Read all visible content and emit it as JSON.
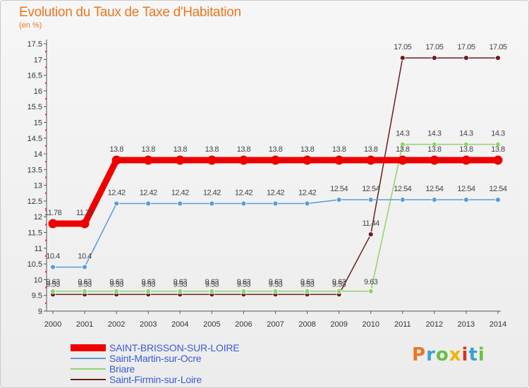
{
  "title": "Evolution du Taux de Taxe d'Habitation",
  "unit": "(en %)",
  "logo": "Proxiti",
  "colors": {
    "title": "#e87722",
    "axis": "#555555",
    "legend_text": "#3b5bd6",
    "logo": [
      "#e87722",
      "#3aa0d8",
      "#6cbd45",
      "#f2b400",
      "#d9341e",
      "#3aa0d8",
      "#6cbd45"
    ]
  },
  "chart_data": {
    "type": "line",
    "title": "Evolution du Taux de Taxe d'Habitation",
    "ylabel": "(en %)",
    "xlabel": "",
    "x": [
      "2000",
      "2001",
      "2002",
      "2003",
      "2004",
      "2005",
      "2006",
      "2007",
      "2008",
      "2009",
      "2010",
      "2011",
      "2012",
      "2013",
      "2014"
    ],
    "ylim": [
      9,
      17.5
    ],
    "yticks": [
      "9",
      "9.5",
      "10",
      "10.5",
      "11",
      "11.5",
      "12",
      "12.5",
      "13",
      "13.5",
      "14",
      "14.5",
      "15",
      "15.5",
      "16",
      "16.5",
      "17",
      "17.5"
    ],
    "legend_position": "bottom-left",
    "grid": false,
    "series": [
      {
        "name": "SAINT-BRISSON-SUR-LOIRE",
        "color": "#ee0000",
        "values": [
          11.78,
          11.78,
          13.8,
          13.8,
          13.8,
          13.8,
          13.8,
          13.8,
          13.8,
          13.8,
          13.8,
          13.8,
          13.8,
          13.8,
          13.8
        ],
        "labels": [
          "11.78",
          "11.78",
          "13.8",
          "13.8",
          "13.8",
          "13.8",
          "13.8",
          "13.8",
          "13.8",
          "13.8",
          "13.8",
          "13.8",
          "13.8",
          "13.8",
          "13.8"
        ]
      },
      {
        "name": "Saint-Martin-sur-Ocre",
        "color": "#5b9bd5",
        "values": [
          10.4,
          10.4,
          12.42,
          12.42,
          12.42,
          12.42,
          12.42,
          12.42,
          12.42,
          12.54,
          12.54,
          12.54,
          12.54,
          12.54,
          12.54
        ],
        "labels": [
          "10.4",
          "10.4",
          "12.42",
          "12.42",
          "12.42",
          "12.42",
          "12.42",
          "12.42",
          "12.42",
          "12.54",
          "12.54",
          "12.54",
          "12.54",
          "12.54",
          "12.54"
        ]
      },
      {
        "name": "Briare",
        "color": "#8fd46b",
        "values": [
          9.63,
          9.63,
          9.63,
          9.63,
          9.63,
          9.63,
          9.63,
          9.63,
          9.63,
          9.63,
          9.63,
          14.3,
          14.3,
          14.3,
          14.3
        ],
        "labels": [
          "9.63",
          "9.63",
          "9.63",
          "9.63",
          "9.63",
          "9.63",
          "9.63",
          "9.63",
          "9.63",
          "9.63",
          "9.63",
          "14.3",
          "14.3",
          "14.3",
          "14.3"
        ]
      },
      {
        "name": "Saint-Firmin-sur-Loire",
        "color": "#6b1d1d",
        "values": [
          9.53,
          9.53,
          9.53,
          9.53,
          9.53,
          9.53,
          9.53,
          9.53,
          9.53,
          9.53,
          11.44,
          17.05,
          17.05,
          17.05,
          17.05
        ],
        "labels": [
          "9.53",
          "9.53",
          "9.53",
          "9.53",
          "9.53",
          "9.53",
          "9.53",
          "9.53",
          "9.53",
          "9.53",
          "11.44",
          "17.05",
          "17.05",
          "17.05",
          "17.05"
        ]
      }
    ]
  }
}
